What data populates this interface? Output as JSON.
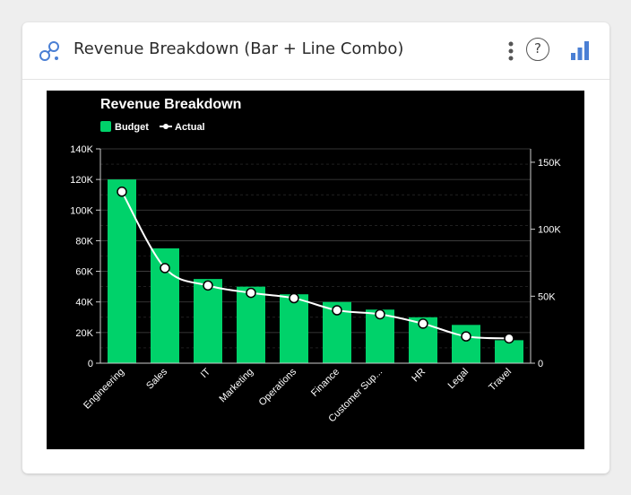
{
  "header": {
    "title": "Revenue Breakdown (Bar + Line Combo)",
    "help_label": "?",
    "icons": [
      "logo-icon",
      "kebab-menu-icon",
      "help-icon",
      "bar-chart-icon"
    ]
  },
  "colors": {
    "budget": "#00d26a",
    "actual": "#ffffff",
    "background": "#000000",
    "accent": "#4a7fd4"
  },
  "chart_data": {
    "type": "bar",
    "title": "Revenue Breakdown",
    "legend_position": "top-left",
    "grid": true,
    "categories": [
      "Engineering",
      "Sales",
      "IT",
      "Marketing",
      "Operations",
      "Finance",
      "Customer Sup...",
      "HR",
      "Legal",
      "Travel"
    ],
    "series": [
      {
        "name": "Budget",
        "type": "bar",
        "axis": "left",
        "values": [
          120000,
          75000,
          55000,
          50000,
          45000,
          40000,
          35000,
          30000,
          25000,
          15000
        ]
      },
      {
        "name": "Actual",
        "type": "line",
        "axis": "right",
        "values": [
          128000,
          71000,
          58000,
          52500,
          48500,
          39500,
          36500,
          29500,
          20000,
          18500
        ]
      }
    ],
    "y_left": {
      "range": [
        0,
        140000
      ],
      "ticks": [
        0,
        20000,
        40000,
        60000,
        80000,
        100000,
        120000,
        140000
      ],
      "tick_labels": [
        "0",
        "20K",
        "40K",
        "60K",
        "80K",
        "100K",
        "120K",
        "140K"
      ]
    },
    "y_right": {
      "range": [
        0,
        160000
      ],
      "ticks": [
        0,
        50000,
        100000,
        150000
      ],
      "tick_labels": [
        "0",
        "50K",
        "100K",
        "150K"
      ]
    }
  }
}
